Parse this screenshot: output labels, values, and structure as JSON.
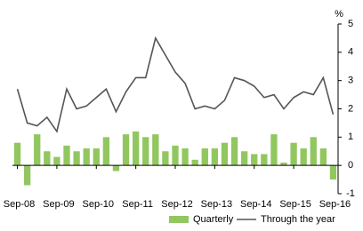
{
  "chart_data": {
    "type": "bar_line",
    "unit_label": "%",
    "categories": [
      "Sep-08",
      null,
      null,
      null,
      "Sep-09",
      null,
      null,
      null,
      "Sep-10",
      null,
      null,
      null,
      "Sep-11",
      null,
      null,
      null,
      "Sep-12",
      null,
      null,
      null,
      "Sep-13",
      null,
      null,
      null,
      "Sep-14",
      null,
      null,
      null,
      "Sep-15",
      null,
      null,
      null,
      "Sep-16"
    ],
    "series": [
      {
        "name": "Quarterly",
        "type": "bar",
        "color": "#92c760",
        "values": [
          0.8,
          -0.7,
          1.1,
          0.5,
          0.3,
          0.7,
          0.5,
          0.6,
          0.6,
          1.0,
          -0.2,
          1.1,
          1.2,
          1.0,
          1.1,
          0.5,
          0.7,
          0.6,
          0.2,
          0.6,
          0.6,
          0.8,
          1.0,
          0.5,
          0.4,
          0.4,
          1.1,
          0.1,
          0.8,
          0.6,
          1.0,
          0.6,
          -0.5
        ]
      },
      {
        "name": "Through the year",
        "type": "line",
        "color": "#555555",
        "values": [
          2.7,
          1.5,
          1.4,
          1.7,
          1.2,
          2.7,
          2.0,
          2.1,
          2.4,
          2.7,
          1.9,
          2.6,
          3.1,
          3.1,
          4.5,
          3.9,
          3.3,
          2.9,
          2.0,
          2.1,
          2.0,
          2.3,
          3.1,
          3.0,
          2.8,
          2.4,
          2.5,
          2.0,
          2.4,
          2.6,
          2.5,
          3.1,
          1.8
        ]
      }
    ],
    "ylim": [
      -1,
      5
    ],
    "yticks": [
      -1,
      0,
      1,
      2,
      3,
      4,
      5
    ],
    "yaxis_side": "right",
    "grid": false
  }
}
